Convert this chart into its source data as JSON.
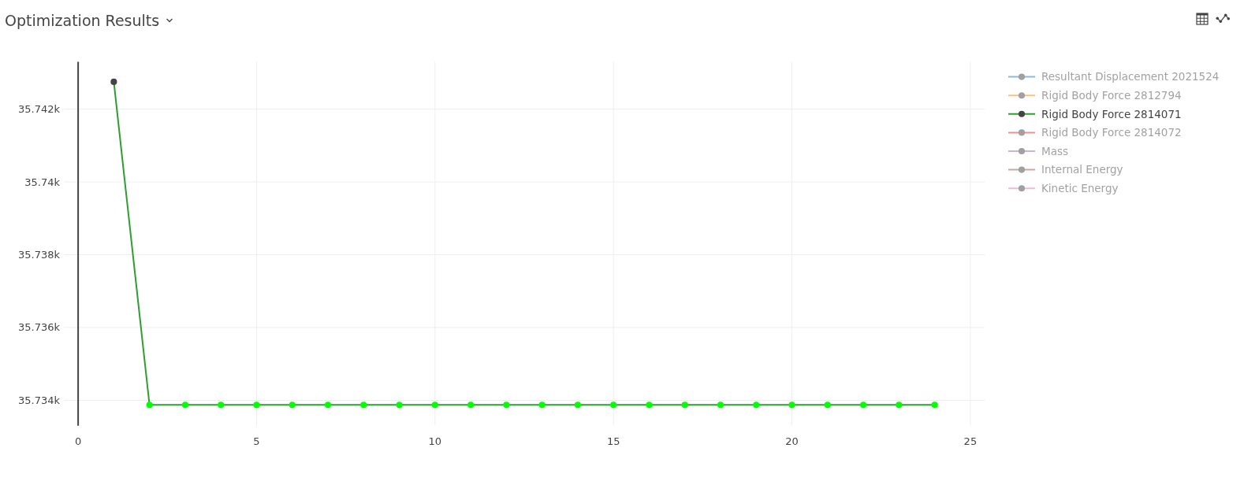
{
  "chart_data": {
    "type": "line",
    "title": "Optimization Results",
    "x": [
      1,
      2,
      3,
      4,
      5,
      6,
      7,
      8,
      9,
      10,
      11,
      12,
      13,
      14,
      15,
      16,
      17,
      18,
      19,
      20,
      21,
      22,
      23,
      24
    ],
    "series": [
      {
        "name": "Resultant Displacement 2021524",
        "color": "#1f77b4",
        "values": [
          null,
          null,
          null,
          null,
          null,
          null,
          null,
          null,
          null,
          null,
          null,
          null,
          null,
          null,
          null,
          null,
          null,
          null,
          null,
          null,
          null,
          null,
          null,
          null
        ]
      },
      {
        "name": "Rigid Body Force 2812794",
        "color": "#ff7f0e",
        "values": [
          null,
          null,
          null,
          null,
          null,
          null,
          null,
          null,
          null,
          null,
          null,
          null,
          null,
          null,
          null,
          null,
          null,
          null,
          null,
          null,
          null,
          null,
          null,
          null
        ]
      },
      {
        "name": "Rigid Body Force 2814071",
        "color": "#2ca02c",
        "colors": [
          "#444444",
          "#00ff00",
          "#00ff00",
          "#00ff00",
          "#00ff00",
          "#00ff00",
          "#00ff00",
          "#00ff00",
          "#00ff00",
          "#00ff00",
          "#00ff00",
          "#00ff00",
          "#00ff00",
          "#00ff00",
          "#00ff00",
          "#00ff00",
          "#00ff00",
          "#00ff00",
          "#00ff00",
          "#00ff00",
          "#00ff00",
          "#00ff00",
          "#00ff00",
          "#00ff00"
        ],
        "values": [
          35742.75,
          35733.87,
          35733.87,
          35733.87,
          35733.87,
          35733.87,
          35733.87,
          35733.87,
          35733.87,
          35733.87,
          35733.87,
          35733.87,
          35733.87,
          35733.87,
          35733.87,
          35733.87,
          35733.87,
          35733.87,
          35733.87,
          35733.87,
          35733.87,
          35733.87,
          35733.87,
          35733.87
        ]
      },
      {
        "name": "Rigid Body Force 2814072",
        "color": "#d62728",
        "values": [
          null,
          null,
          null,
          null,
          null,
          null,
          null,
          null,
          null,
          null,
          null,
          null,
          null,
          null,
          null,
          null,
          null,
          null,
          null,
          null,
          null,
          null,
          null,
          null
        ]
      },
      {
        "name": "Mass",
        "color": "#9467bd",
        "values": [
          null,
          null,
          null,
          null,
          null,
          null,
          null,
          null,
          null,
          null,
          null,
          null,
          null,
          null,
          null,
          null,
          null,
          null,
          null,
          null,
          null,
          null,
          null,
          null
        ]
      },
      {
        "name": "Internal Energy",
        "color": "#8c564b",
        "values": [
          null,
          null,
          null,
          null,
          null,
          null,
          null,
          null,
          null,
          null,
          null,
          null,
          null,
          null,
          null,
          null,
          null,
          null,
          null,
          null,
          null,
          null,
          null,
          null
        ]
      },
      {
        "name": "Kinetic Energy",
        "color": "#e377c2",
        "values": [
          null,
          null,
          null,
          null,
          null,
          null,
          null,
          null,
          null,
          null,
          null,
          null,
          null,
          null,
          null,
          null,
          null,
          null,
          null,
          null,
          null,
          null,
          null,
          null
        ]
      }
    ],
    "xlim": [
      -0.4,
      25.4
    ],
    "ylim": [
      35733.3,
      35743.3
    ],
    "xticks": [
      0,
      5,
      10,
      15,
      20,
      25
    ],
    "yticks": [
      {
        "value": 35734,
        "label": "35.734k"
      },
      {
        "value": 35736,
        "label": "35.736k"
      },
      {
        "value": 35738,
        "label": "35.738k"
      },
      {
        "value": 35740,
        "label": "35.74k"
      },
      {
        "value": 35742,
        "label": "35.742k"
      }
    ],
    "grid": true,
    "legend": "top right",
    "marker": "circle",
    "line_style": "solid"
  }
}
